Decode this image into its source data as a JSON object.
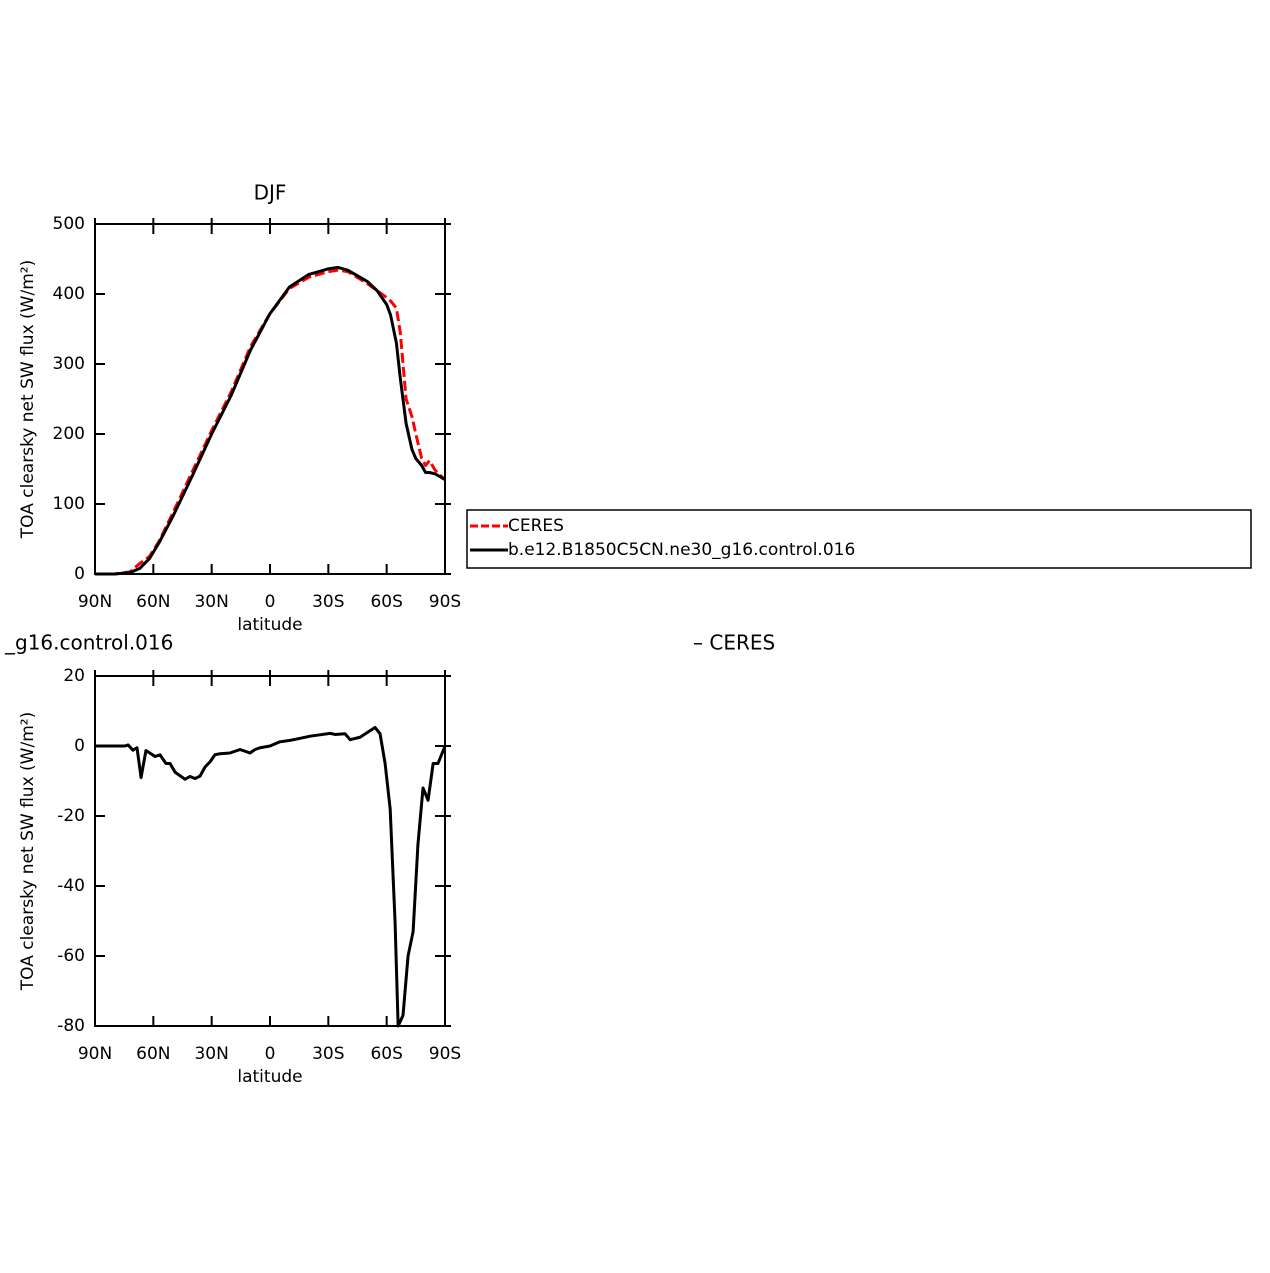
{
  "chart_data": [
    {
      "type": "line",
      "title": "DJF",
      "xlabel": "latitude",
      "ylabel": "TOA clearsky net SW flux (W/m²)",
      "x": [
        90,
        80,
        72,
        67,
        62,
        57,
        50,
        40,
        30,
        20,
        10,
        0,
        -10,
        -20,
        -30,
        -35,
        -40,
        -50,
        -55,
        -60,
        -62,
        -65,
        -67,
        -70,
        -73,
        -75,
        -78,
        -80,
        -82,
        -85,
        -88,
        -90
      ],
      "series": [
        {
          "name": "CERES",
          "color": "#ff0000",
          "linestyle": "dashed",
          "values": [
            0,
            0,
            3,
            15,
            25,
            47,
            87,
            146,
            205,
            260,
            325,
            372,
            408,
            424,
            432,
            434,
            432,
            415,
            405,
            395,
            390,
            380,
            345,
            250,
            225,
            200,
            165,
            155,
            162,
            148,
            140,
            135
          ]
        },
        {
          "name": "b.e12.B1850C5CN.ne30_g16.control.016",
          "color": "#000000",
          "linestyle": "solid",
          "values": [
            0,
            0,
            2,
            8,
            22,
            45,
            82,
            140,
            200,
            255,
            320,
            372,
            410,
            428,
            436,
            438,
            434,
            418,
            405,
            385,
            370,
            330,
            280,
            215,
            178,
            165,
            155,
            145,
            145,
            143,
            138,
            135
          ]
        }
      ],
      "xlim": [
        90,
        -90
      ],
      "xticks": [
        {
          "value": 90,
          "label": "90N"
        },
        {
          "value": 60,
          "label": "60N"
        },
        {
          "value": 30,
          "label": "30N"
        },
        0,
        {
          "value": -30,
          "label": "30S"
        },
        {
          "value": -60,
          "label": "60S"
        },
        {
          "value": -90,
          "label": "90S"
        }
      ],
      "ylim": [
        0,
        500
      ],
      "yticks": [
        0,
        100,
        200,
        300,
        400,
        500
      ],
      "legend": "right"
    },
    {
      "type": "line",
      "title_left": "_g16.control.016",
      "title_right": "– CERES",
      "xlabel": "latitude",
      "ylabel": "TOA clearsky net SW flux (W/m²)",
      "x": [
        90,
        74.6,
        73,
        70.5,
        68.4,
        66.3,
        63.8,
        59.1,
        56.6,
        53.5,
        51.4,
        48.8,
        43.7,
        41.1,
        38.6,
        36,
        33.4,
        30.8,
        28.3,
        25.7,
        20.6,
        15.4,
        12.8,
        10.3,
        7.7,
        5.1,
        0,
        -5.1,
        -10.3,
        -15.5,
        -20.6,
        -25.7,
        -30.9,
        -33.5,
        -38.6,
        -41.2,
        -46.3,
        -54,
        -56.6,
        -59.2,
        -61.8,
        -64.3,
        -65.9,
        -68.4,
        -71,
        -73.6,
        -76.1,
        -78.7,
        -81.3,
        -83.9,
        -86.4,
        -90
      ],
      "series": [
        {
          "color": "#000000",
          "linestyle": "solid",
          "values": [
            0,
            0,
            0.3,
            -1.2,
            -0.5,
            -9,
            -1.3,
            -3,
            -2.5,
            -5,
            -5,
            -7.5,
            -9.5,
            -8.7,
            -9.3,
            -8.6,
            -6,
            -4.5,
            -2.5,
            -2.2,
            -2,
            -1,
            -1.5,
            -2,
            -1,
            -0.5,
            0,
            1.2,
            1.6,
            2.2,
            2.8,
            3.2,
            3.6,
            3.3,
            3.5,
            1.8,
            2.5,
            5.3,
            3.5,
            -5,
            -18,
            -50,
            -80,
            -77,
            -60,
            -53,
            -28,
            -12,
            -15.5,
            -5,
            -5,
            0
          ]
        }
      ],
      "xlim": [
        90,
        -90
      ],
      "xticks": [
        {
          "value": 90,
          "label": "90N"
        },
        {
          "value": 60,
          "label": "60N"
        },
        {
          "value": 30,
          "label": "30N"
        },
        0,
        {
          "value": -30,
          "label": "30S"
        },
        {
          "value": -60,
          "label": "60S"
        },
        {
          "value": -90,
          "label": "90S"
        }
      ],
      "ylim": [
        -80,
        20
      ],
      "yticks": [
        -80,
        -60,
        -40,
        -20,
        0,
        20
      ]
    }
  ]
}
